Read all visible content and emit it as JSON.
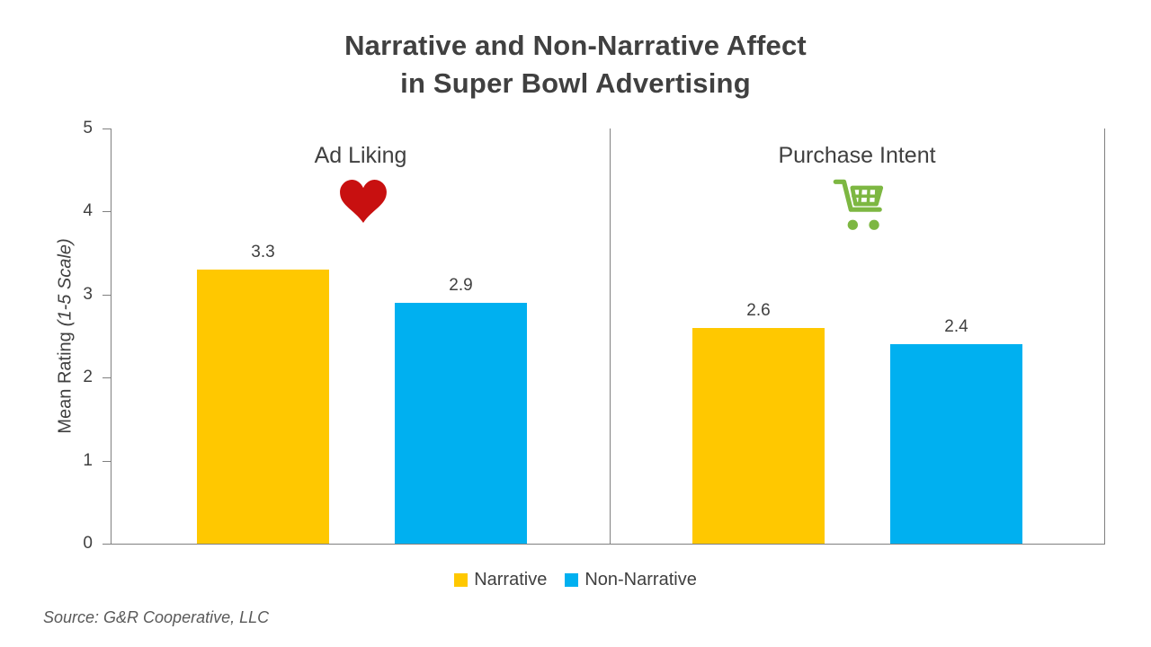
{
  "title": {
    "line1": "Narrative and Non-Narrative Affect",
    "line2": "in Super Bowl Advertising"
  },
  "y_axis": {
    "label": "Mean Rating",
    "label_italic": "(1-5 Scale)",
    "ticks": [
      "5",
      "4",
      "3",
      "2",
      "1",
      "0"
    ]
  },
  "panels": [
    {
      "label": "Ad Liking",
      "icon": "heart-icon",
      "icon_color": "#C81010"
    },
    {
      "label": "Purchase Intent",
      "icon": "cart-icon",
      "icon_color": "#7DB742"
    }
  ],
  "legend": {
    "items": [
      {
        "label": "Narrative",
        "color": "#FFC800"
      },
      {
        "label": "Non-Narrative",
        "color": "#00B0F0"
      }
    ]
  },
  "source": "Source: G&R Cooperative, LLC",
  "colors": {
    "title_text": "#404040",
    "axis_line": "#808080",
    "narrative_bar": "#FFC800",
    "non_narrative_bar": "#00B0F0",
    "heart_red": "#C81010",
    "cart_green": "#7DB742",
    "source_text": "#595959"
  },
  "chart_data": {
    "type": "bar",
    "categories": [
      "Ad Liking",
      "Purchase Intent"
    ],
    "series": [
      {
        "name": "Narrative",
        "values": [
          3.3,
          2.6
        ],
        "color": "#FFC800"
      },
      {
        "name": "Non-Narrative",
        "values": [
          2.9,
          2.4
        ],
        "color": "#00B0F0"
      }
    ],
    "title": "Narrative and Non-Narrative Affect in Super Bowl Advertising",
    "xlabel": "",
    "ylabel": "Mean Rating (1-5 Scale)",
    "ylim": [
      0,
      5
    ],
    "grid": false,
    "legend_position": "bottom",
    "data_labels": [
      "3.3",
      "2.9",
      "2.6",
      "2.4"
    ],
    "source": "Source: G&R Cooperative, LLC"
  }
}
